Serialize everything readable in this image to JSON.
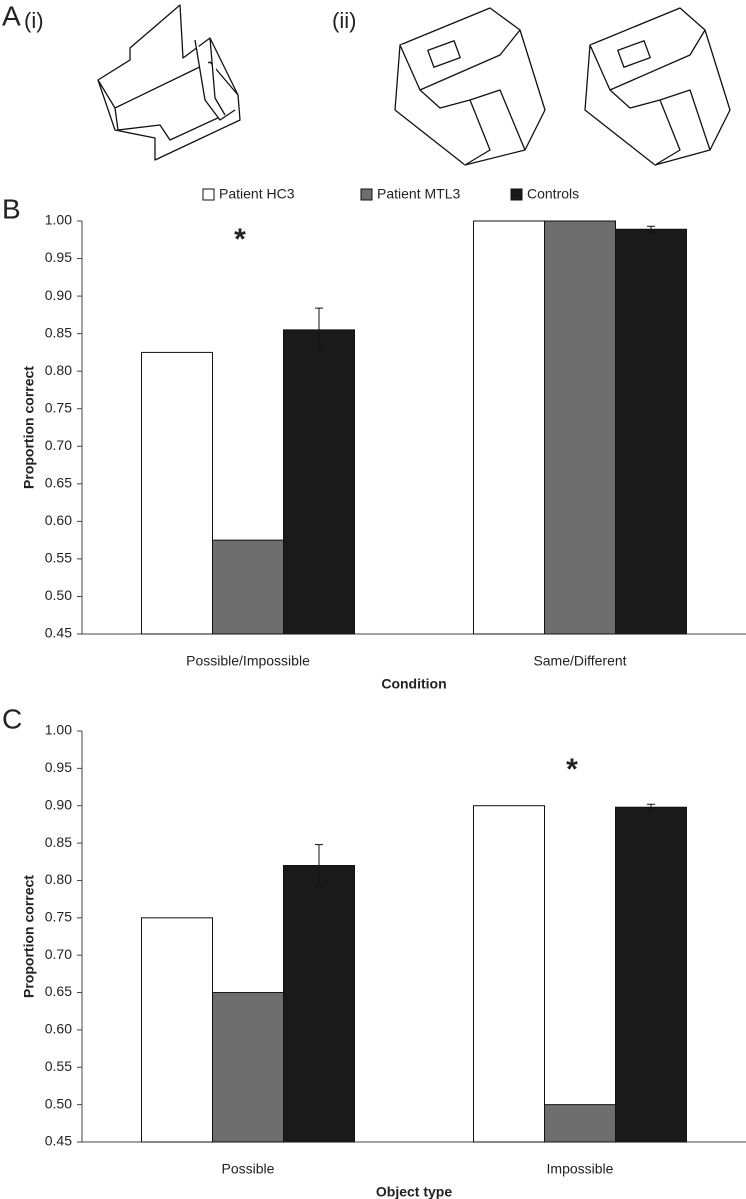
{
  "panels": {
    "a": "A",
    "a_i": "(i)",
    "a_ii": "(ii)"
  },
  "chart_data": [
    {
      "type": "bar",
      "panel_label": "B",
      "legend": true,
      "categories": [
        "Possible/Impossible",
        "Same/Different"
      ],
      "x_label": "Condition",
      "y_label": "Proportion correct",
      "series": [
        {
          "name": "Patient HC3",
          "color": "#ffffff",
          "values": [
            0.825,
            1.0
          ]
        },
        {
          "name": "Patient MTL3",
          "color": "#6e6e6e",
          "values": [
            0.575,
            1.0
          ]
        },
        {
          "name": "Controls",
          "color": "#1a1a1a",
          "values": [
            0.855,
            0.989
          ],
          "errors": [
            0.029,
            0.004
          ]
        }
      ],
      "annotations": [
        {
          "text": "*",
          "category": "Possible/Impossible"
        }
      ],
      "ylim": [
        0.45,
        1.0
      ],
      "yticks": [
        0.45,
        {
          "value": 0.5,
          "label": "0.50"
        },
        0.55,
        {
          "value": 0.6,
          "label": "0.60"
        },
        0.65,
        {
          "value": 0.7,
          "label": "0.70"
        },
        0.75,
        {
          "value": 0.8,
          "label": "0.80"
        },
        0.85,
        {
          "value": 0.9,
          "label": "0.90"
        },
        0.95,
        {
          "value": 1.0,
          "label": "1.00"
        }
      ]
    },
    {
      "type": "bar",
      "panel_label": "C",
      "legend": false,
      "categories": [
        "Possible",
        "Impossible"
      ],
      "x_label": "Object type",
      "y_label": "Proportion correct",
      "series": [
        {
          "color": "#ffffff",
          "values": [
            0.75,
            0.9
          ]
        },
        {
          "color": "#6e6e6e",
          "values": [
            0.65,
            0.5
          ]
        },
        {
          "color": "#1a1a1a",
          "values": [
            0.82,
            0.898
          ],
          "errors": [
            0.028,
            0.004
          ]
        }
      ],
      "annotations": [
        {
          "text": "*",
          "category": "Impossible"
        }
      ],
      "ylim": [
        0.45,
        1.0
      ],
      "yticks": [
        0.45,
        {
          "value": 0.5,
          "label": "0.50"
        },
        0.55,
        {
          "value": 0.6,
          "label": "0.60"
        },
        0.65,
        {
          "value": 0.7,
          "label": "0.70"
        },
        0.75,
        {
          "value": 0.8,
          "label": "0.80"
        },
        0.85,
        {
          "value": 0.9,
          "label": "0.90"
        },
        0.95,
        {
          "value": 1.0,
          "label": "1.00"
        }
      ]
    }
  ]
}
